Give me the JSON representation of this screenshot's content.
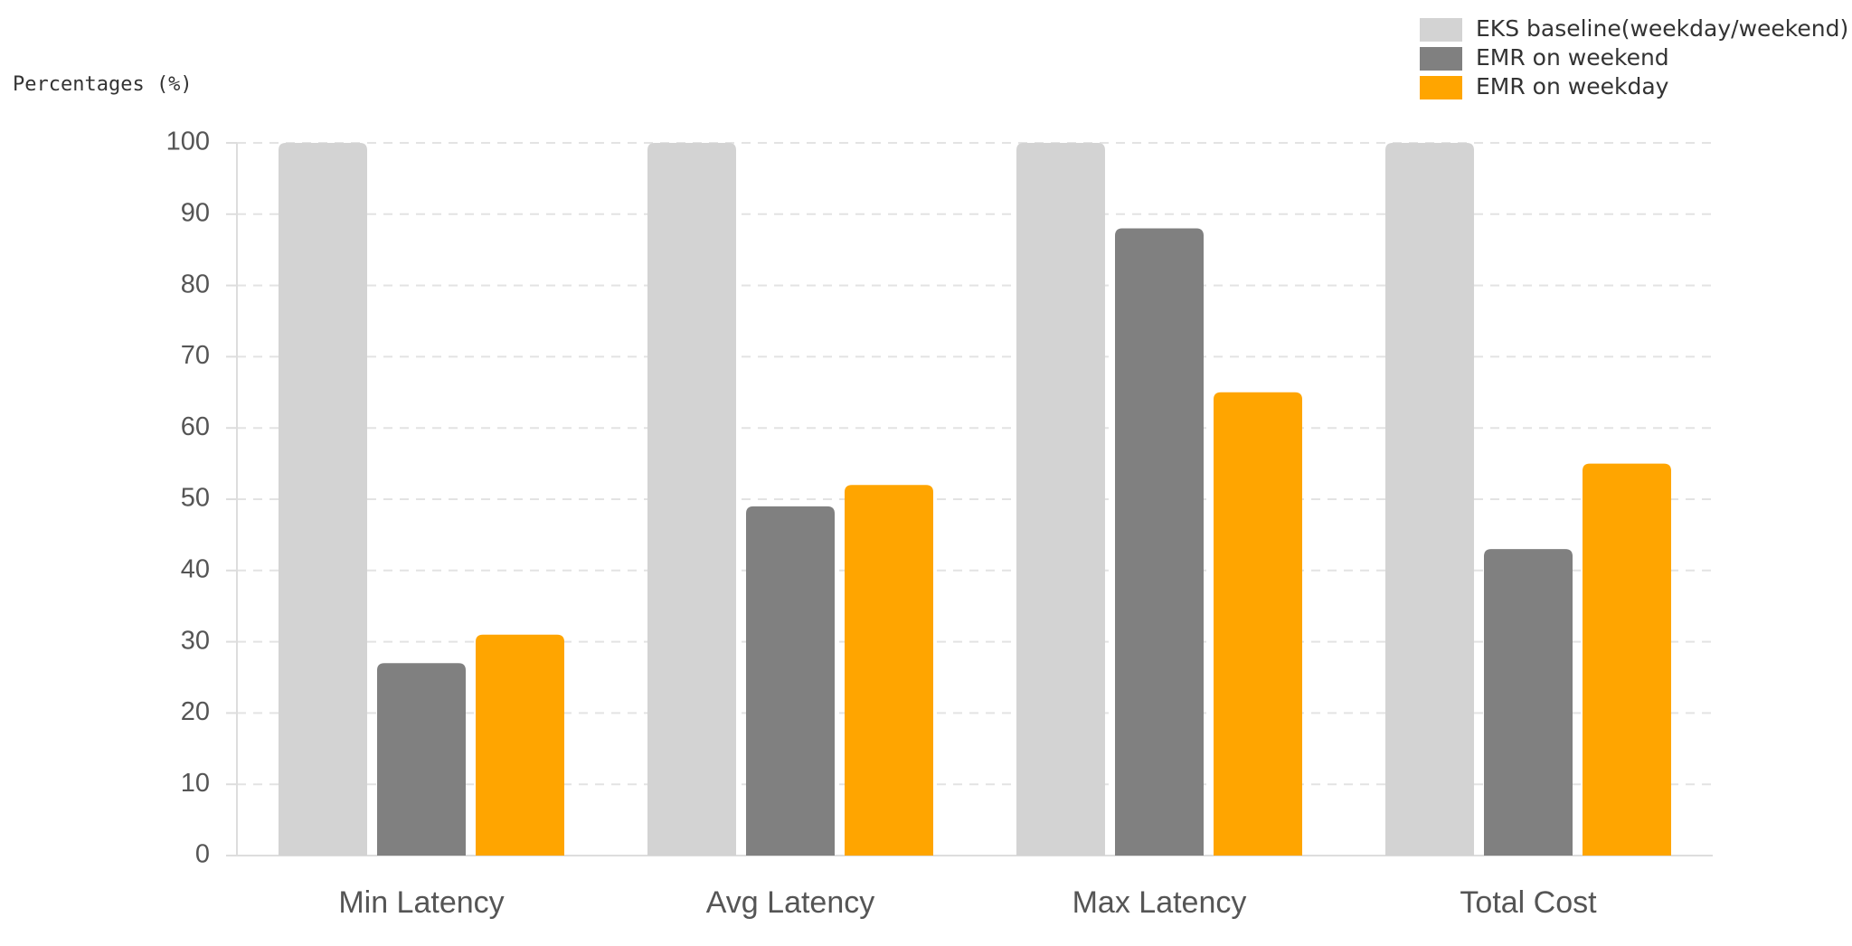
{
  "chart_data": {
    "type": "bar",
    "y_label": "Percentages (%)",
    "categories": [
      "Min Latency",
      "Avg Latency",
      "Max Latency",
      "Total Cost"
    ],
    "series": [
      {
        "name": "EKS baseline(weekday/weekend)",
        "color": "#d3d3d3",
        "values": [
          100,
          100,
          100,
          100
        ]
      },
      {
        "name": "EMR on weekend",
        "color": "#808080",
        "values": [
          27,
          49,
          88,
          43
        ]
      },
      {
        "name": "EMR on weekday",
        "color": "#ffa500",
        "values": [
          31,
          52,
          65,
          55
        ]
      }
    ],
    "ylim": [
      0,
      100
    ],
    "yticks": [
      0,
      10,
      20,
      30,
      40,
      50,
      60,
      70,
      80,
      90,
      100
    ],
    "grid": true,
    "legend": "top-right"
  }
}
